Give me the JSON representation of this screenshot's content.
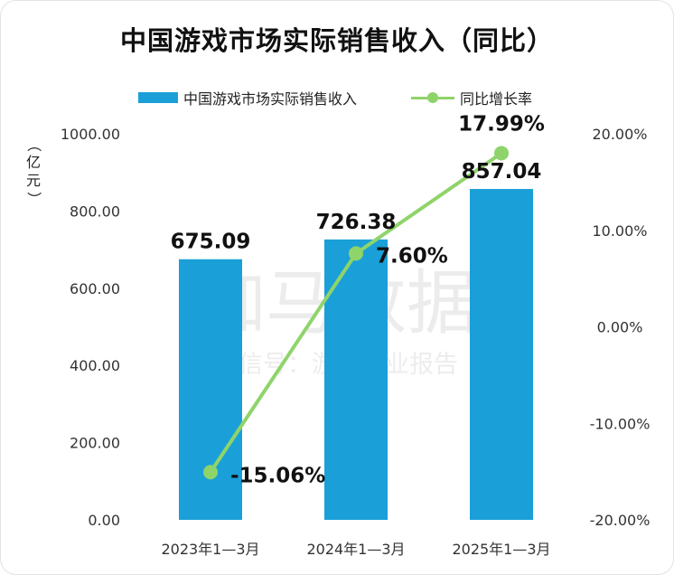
{
  "title": "中国游戏市场实际销售收入（同比）",
  "unit_label": "（亿元）",
  "watermark": {
    "main": "伽马数据",
    "sub": "微信号：游戏产业报告"
  },
  "colors": {
    "bar": "#1a9fd8",
    "line": "#8fd46a",
    "text": "#111111"
  },
  "chart_data": {
    "type": "bar",
    "title": "中国游戏市场实际销售收入（同比）",
    "categories": [
      "2023年1—3月",
      "2024年1—3月",
      "2025年1—3月"
    ],
    "series": [
      {
        "name": "中国游戏市场实际销售收入",
        "type": "bar",
        "axis": "left",
        "values": [
          675.09,
          726.38,
          857.04
        ],
        "labels": [
          "675.09",
          "726.38",
          "857.04"
        ]
      },
      {
        "name": "同比增长率",
        "type": "line",
        "axis": "right",
        "values": [
          -15.06,
          7.6,
          17.99
        ],
        "labels": [
          "-15.06%",
          "7.60%",
          "17.99%"
        ]
      }
    ],
    "y_left": {
      "range": [
        0,
        1000
      ],
      "ticks": [
        "0.00",
        "200.00",
        "400.00",
        "600.00",
        "800.00",
        "1000.00"
      ]
    },
    "y_right": {
      "range": [
        -20,
        20
      ],
      "ticks": [
        "-20.00%",
        "-10.00%",
        "0.00%",
        "10.00%",
        "20.00%"
      ]
    },
    "legend_position": "top",
    "grid": false
  }
}
